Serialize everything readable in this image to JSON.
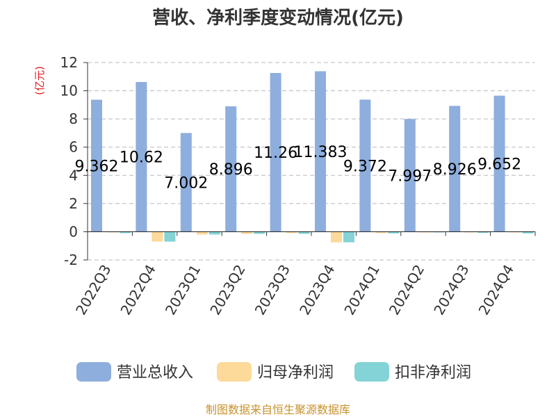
{
  "chart_data": {
    "type": "bar",
    "title": "营收、净利季度变动情况(亿元)",
    "unit": "(亿元)",
    "categories": [
      "2022Q3",
      "2022Q4",
      "2023Q1",
      "2023Q2",
      "2023Q3",
      "2023Q4",
      "2024Q1",
      "2024Q2",
      "2024Q3",
      "2024Q4"
    ],
    "series": [
      {
        "name": "营业总收入",
        "color": "#8eaedd",
        "values": [
          9.362,
          10.62,
          7.002,
          8.896,
          11.26,
          11.383,
          9.372,
          7.997,
          8.926,
          9.652
        ],
        "labels": [
          "9.362",
          "10.62",
          "7.002",
          "8.896",
          "11.26",
          "11.383",
          "9.372",
          "7.997",
          "8.926",
          "9.652"
        ]
      },
      {
        "name": "归母净利润",
        "color": "#fdd99a",
        "values": [
          -0.05,
          -0.7,
          -0.2,
          -0.15,
          -0.1,
          -0.75,
          -0.1,
          -0.05,
          -0.05,
          -0.05
        ]
      },
      {
        "name": "扣非净利润",
        "color": "#84d3d6",
        "values": [
          -0.1,
          -0.7,
          -0.2,
          -0.15,
          -0.15,
          -0.75,
          -0.12,
          -0.05,
          -0.08,
          -0.12
        ]
      }
    ],
    "yticks": [
      "-2",
      "0",
      "2",
      "4",
      "6",
      "8",
      "10",
      "12"
    ],
    "ylim": [
      -2,
      12
    ],
    "grid": true,
    "legend_position": "bottom"
  },
  "footer": {
    "source": "制图数据来自恒生聚源数据库"
  }
}
